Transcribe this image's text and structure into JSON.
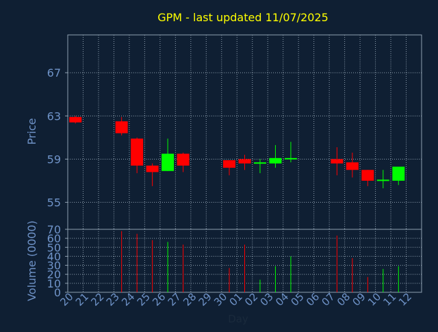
{
  "chart_data": {
    "type": "candlestick",
    "title": "GPM - last updated 11/07/2025",
    "ylabel": "Price",
    "volume_label": "Volume (0000)",
    "xlabel": "Day",
    "ylim": [
      52.5,
      70.5
    ],
    "price_ticks": [
      55,
      59,
      63,
      67
    ],
    "volume_ticks": [
      0,
      10,
      20,
      30,
      40,
      50,
      60,
      70
    ],
    "volume_ylim": [
      0,
      70
    ],
    "grid": true,
    "colors": {
      "background": "#0f1f33",
      "up": "#00ff00",
      "down": "#ff0000",
      "title": "#ffff00",
      "axis_text": "#6f93c8",
      "axis_line": "#8fa0b0",
      "grid": "#8fa0b0"
    },
    "days": [
      "20",
      "21",
      "22",
      "23",
      "24",
      "25",
      "26",
      "27",
      "28",
      "29",
      "30",
      "01",
      "02",
      "03",
      "04",
      "05",
      "06",
      "07",
      "08",
      "09",
      "10",
      "11",
      "12"
    ],
    "candles": [
      {
        "day": "20",
        "open": 62.9,
        "high": 63.0,
        "low": 62.3,
        "close": 62.4,
        "volume": null
      },
      {
        "day": "23",
        "open": 62.5,
        "high": 62.9,
        "low": 61.2,
        "close": 61.4,
        "volume": 68
      },
      {
        "day": "24",
        "open": 60.9,
        "high": 61.0,
        "low": 57.7,
        "close": 58.4,
        "volume": 65
      },
      {
        "day": "25",
        "open": 58.4,
        "high": 58.6,
        "low": 56.5,
        "close": 57.8,
        "volume": 58
      },
      {
        "day": "26",
        "open": 57.9,
        "high": 60.9,
        "low": 57.9,
        "close": 59.5,
        "volume": 56
      },
      {
        "day": "27",
        "open": 59.5,
        "high": 59.6,
        "low": 57.8,
        "close": 58.4,
        "volume": 53
      },
      {
        "day": "30",
        "open": 58.9,
        "high": 58.9,
        "low": 57.5,
        "close": 58.2,
        "volume": 27
      },
      {
        "day": "01",
        "open": 59.0,
        "high": 59.4,
        "low": 58.0,
        "close": 58.6,
        "volume": 53
      },
      {
        "day": "02",
        "open": 58.6,
        "high": 59.0,
        "low": 57.7,
        "close": 58.7,
        "volume": 14
      },
      {
        "day": "03",
        "open": 58.6,
        "high": 60.3,
        "low": 58.2,
        "close": 59.1,
        "volume": 29
      },
      {
        "day": "04",
        "open": 59.0,
        "high": 60.6,
        "low": 58.7,
        "close": 59.1,
        "volume": 40
      },
      {
        "day": "07",
        "open": 59.0,
        "high": 60.1,
        "low": 57.5,
        "close": 58.6,
        "volume": 63
      },
      {
        "day": "08",
        "open": 58.7,
        "high": 59.6,
        "low": 57.3,
        "close": 58.0,
        "volume": 38
      },
      {
        "day": "09",
        "open": 58.0,
        "high": 58.0,
        "low": 56.5,
        "close": 57.0,
        "volume": 17
      },
      {
        "day": "10",
        "open": 57.0,
        "high": 58.0,
        "low": 56.3,
        "close": 57.1,
        "volume": 26
      },
      {
        "day": "11",
        "open": 57.0,
        "high": 58.3,
        "low": 56.6,
        "close": 58.3,
        "volume": 29
      }
    ]
  }
}
